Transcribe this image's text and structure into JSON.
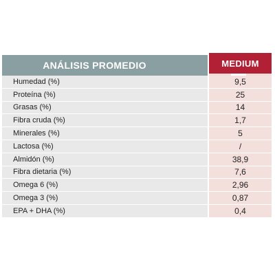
{
  "table": {
    "header_label": "ANÁLISIS PROMEDIO",
    "header_product": "MEDIUM",
    "rows": [
      {
        "label": "Humedad (%)",
        "value": "9,5"
      },
      {
        "label": "Proteína (%)",
        "value": "25"
      },
      {
        "label": "Grasas (%)",
        "value": "14"
      },
      {
        "label": "Fibra cruda (%)",
        "value": "1,7"
      },
      {
        "label": "Minerales (%)",
        "value": "5"
      },
      {
        "label": "Lactosa (%)",
        "value": "/"
      },
      {
        "label": "Almidón (%)",
        "value": "38,9"
      },
      {
        "label": "Fibra dietaria (%)",
        "value": "7,6"
      },
      {
        "label": "Omega 6 (%)",
        "value": "2,96"
      },
      {
        "label": "Omega 3 (%)",
        "value": "0,87"
      },
      {
        "label": "EPA + DHA (%)",
        "value": "0,4"
      }
    ]
  },
  "colors": {
    "header_left_bg": "#8a9fa1",
    "header_right_bg": "#b12034",
    "label_cell_bg": "#e9e9e9",
    "value_cell_bg": "#f3dfdc"
  }
}
